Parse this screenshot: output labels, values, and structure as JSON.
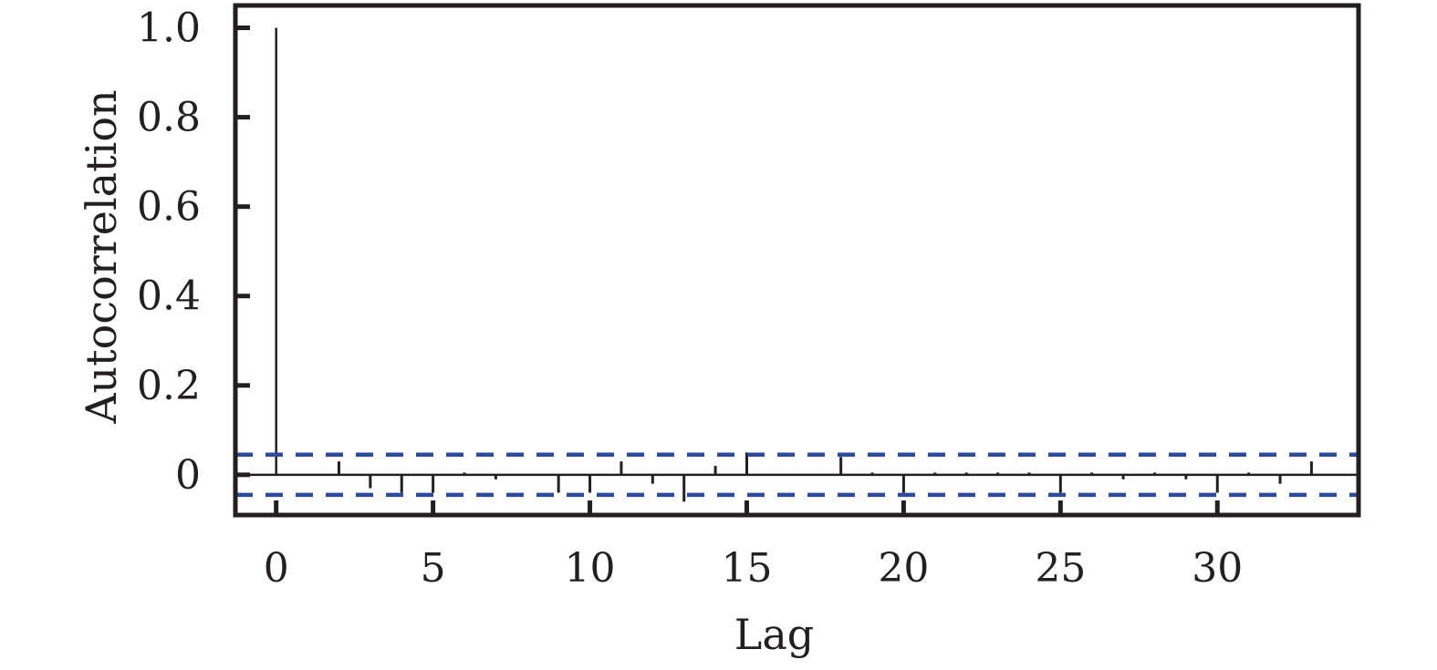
{
  "chart_data": {
    "type": "bar",
    "subtype": "autocorrelation-stem",
    "title": "",
    "xlabel": "Lag",
    "ylabel": "Autocorrelation",
    "xlim": [
      -1.3,
      34.5
    ],
    "ylim": [
      -0.09,
      1.05
    ],
    "x_ticks": [
      0,
      5,
      10,
      15,
      20,
      25,
      30
    ],
    "x_tick_labels": [
      "0",
      "5",
      "10",
      "15",
      "20",
      "25",
      "30"
    ],
    "y_ticks": [
      0,
      0.2,
      0.4,
      0.6,
      0.8,
      1.0
    ],
    "y_tick_labels": [
      "0",
      "0.2",
      "0.4",
      "0.6",
      "0.8",
      "1.0"
    ],
    "grid": false,
    "series": [
      {
        "lags": [
          0,
          1,
          2,
          3,
          4,
          5,
          6,
          7,
          8,
          9,
          10,
          11,
          12,
          13,
          14,
          15,
          16,
          17,
          18,
          19,
          20,
          21,
          22,
          23,
          24,
          25,
          26,
          27,
          28,
          29,
          30,
          31,
          32,
          33
        ],
        "values": [
          1.0,
          0.0,
          0.03,
          -0.03,
          -0.04,
          -0.04,
          0.005,
          -0.01,
          0.0,
          -0.04,
          -0.04,
          0.03,
          -0.02,
          -0.06,
          0.02,
          0.05,
          0.0,
          0.0,
          0.04,
          0.005,
          -0.04,
          0.005,
          0.005,
          0.005,
          0.005,
          -0.04,
          0.005,
          -0.01,
          0.005,
          -0.01,
          -0.04,
          0.005,
          -0.02,
          0.03
        ],
        "color": "#231f20"
      }
    ],
    "confidence_bounds": {
      "upper": 0.045,
      "lower": -0.045,
      "color": "#2e4a9e",
      "style": "dashed"
    },
    "zero_line": 0
  }
}
